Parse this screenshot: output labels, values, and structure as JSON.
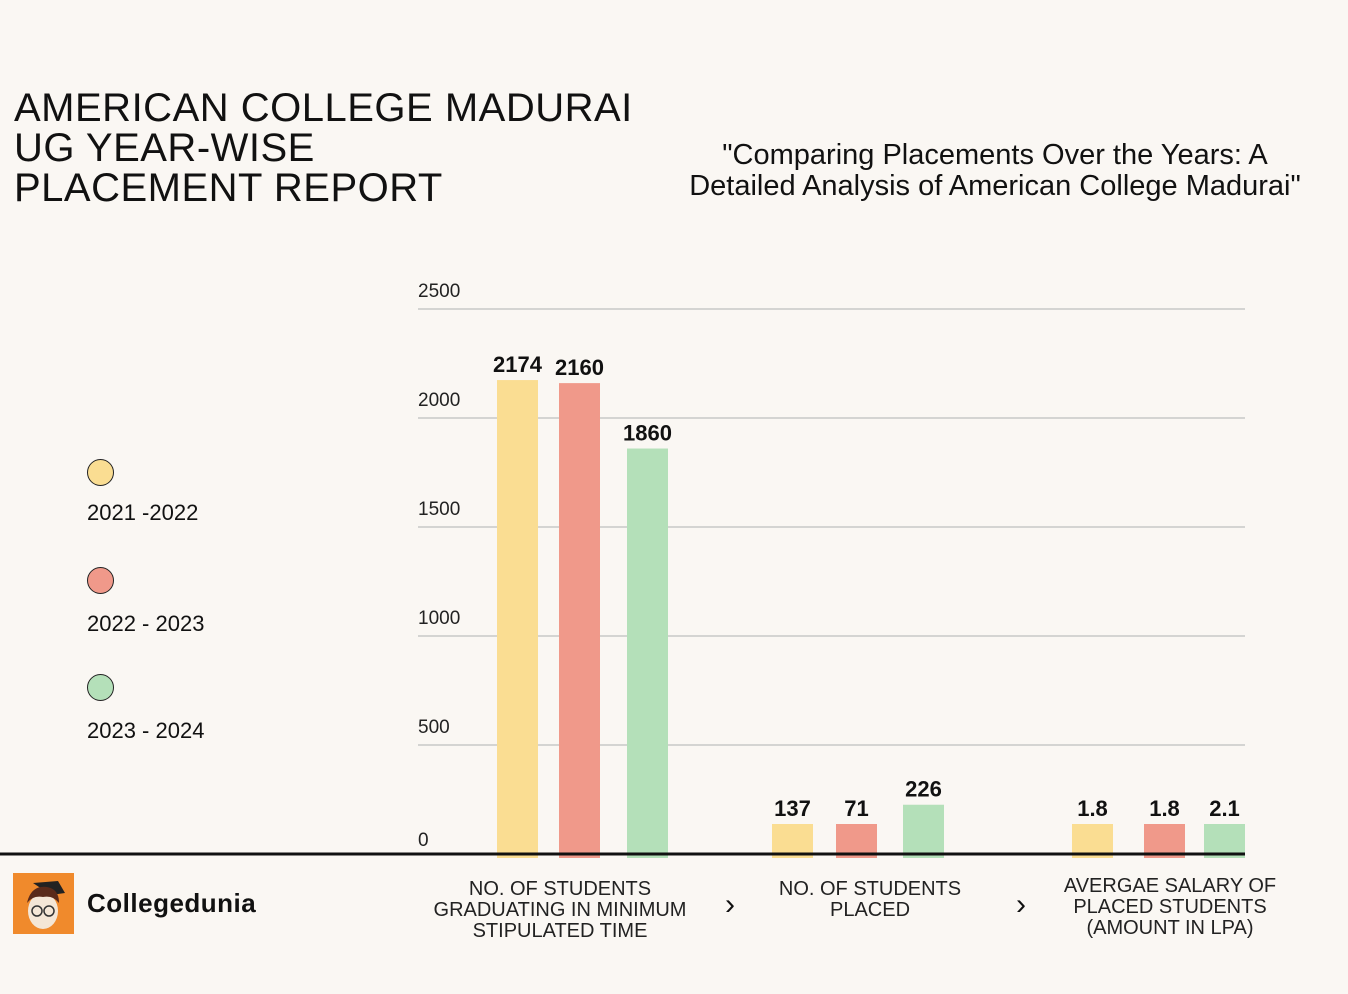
{
  "title_lines": [
    "AMERICAN COLLEGE MADURAI",
    "UG YEAR-WISE",
    "PLACEMENT REPORT"
  ],
  "subtitle_lines": [
    "\"Comparing Placements Over the Years: A",
    "Detailed Analysis of American College Madurai\""
  ],
  "brand": {
    "name": "Collegedunia",
    "logo_color": "#f08a2c"
  },
  "chart_data": {
    "type": "bar",
    "categories": [
      [
        "NO. OF STUDENTS",
        "GRADUATING IN MINIMUM",
        "STIPULATED TIME"
      ],
      [
        "NO. OF STUDENTS",
        "PLACED"
      ],
      [
        "AVERGAE SALARY OF",
        "PLACED STUDENTS",
        "(AMOUNT IN LPA)"
      ]
    ],
    "series": [
      {
        "name": "2021 -2022",
        "color": "#fadd92",
        "values": [
          2174,
          137,
          1.8
        ]
      },
      {
        "name": "2022 - 2023",
        "color": "#f0998a",
        "values": [
          2160,
          71,
          1.8
        ]
      },
      {
        "name": "2023 - 2024",
        "color": "#b4e0b9",
        "values": [
          1860,
          226,
          2.1
        ]
      }
    ],
    "data_labels": [
      [
        "2174",
        "137",
        "1.8"
      ],
      [
        "2160",
        "71",
        "1.8"
      ],
      [
        "1860",
        "226",
        "2.1"
      ]
    ],
    "yticks": [
      "0",
      "500",
      "1000",
      "1500",
      "2000",
      "2500"
    ],
    "ylim": [
      0,
      2500
    ],
    "grid": true,
    "legend_placement": "left"
  }
}
